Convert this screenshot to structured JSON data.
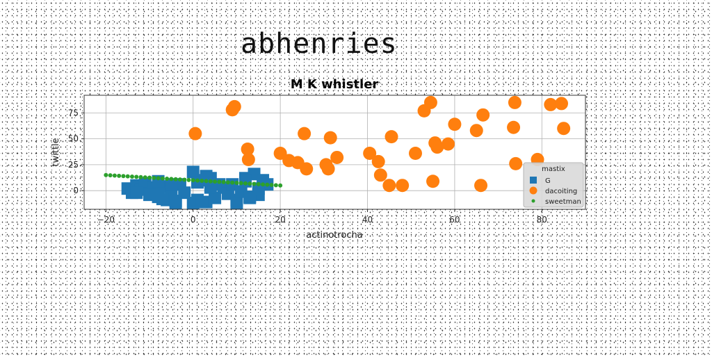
{
  "page_title": "abhenries",
  "chart_data": {
    "type": "scatter",
    "title": "M K whistler",
    "xlabel": "actinotrocha",
    "ylabel": "twittle",
    "xlim": [
      -25,
      90
    ],
    "ylim": [
      -18,
      92
    ],
    "xticks": [
      -20,
      0,
      20,
      40,
      60,
      80
    ],
    "yticks": [
      0,
      25,
      50,
      75
    ],
    "grid": true,
    "legend": {
      "title": "mastix",
      "position": "lower-right"
    },
    "series": [
      {
        "name": "G",
        "marker": "square",
        "color": "#1f77b4",
        "x": [
          -15,
          -14,
          -13,
          -12,
          -11,
          -10,
          -9,
          -8,
          -7,
          -6,
          -5,
          -4,
          -3,
          -2,
          0,
          1,
          2,
          3,
          4,
          5,
          6,
          7,
          8,
          9,
          10,
          11,
          12,
          13,
          14,
          15,
          16,
          17,
          -13,
          -10,
          -7,
          -4,
          0,
          2,
          4,
          10,
          13,
          15,
          -8,
          -5,
          1,
          3,
          12
        ],
        "y": [
          2,
          -2,
          5,
          1,
          7,
          -3,
          3,
          -6,
          4,
          -9,
          1,
          -12,
          6,
          -2,
          18,
          -9,
          10,
          -11,
          12,
          -7,
          6,
          3,
          -3,
          6,
          -9,
          -1,
          12,
          -7,
          16,
          -4,
          10,
          6,
          -2,
          -4,
          -8,
          -10,
          -12,
          -11,
          3,
          -12,
          -6,
          2,
          9,
          6,
          8,
          14,
          9
        ]
      },
      {
        "name": "dacoiting",
        "marker": "circle",
        "color": "#ff7f0e",
        "x": [
          0.5,
          9,
          9.5,
          12.5,
          12.7,
          20,
          22,
          24,
          26,
          25.5,
          30.5,
          31,
          31.5,
          33,
          40.5,
          42.5,
          43,
          45,
          45.5,
          48,
          51,
          53,
          54.5,
          55,
          55.5,
          56,
          58.5,
          60,
          65,
          66,
          66.5,
          73.5,
          73.8,
          74,
          79,
          82,
          84.5,
          85
        ],
        "y": [
          55,
          78,
          81,
          40,
          30,
          36,
          29,
          27,
          21,
          55,
          25,
          21,
          51,
          32,
          36,
          28,
          15,
          5,
          52,
          5,
          36,
          77,
          85,
          9,
          46,
          42,
          45,
          64,
          58,
          5,
          73,
          61,
          85,
          26,
          30,
          83,
          84,
          60
        ]
      },
      {
        "name": "sweetman",
        "marker": "point",
        "color": "#2ca02c",
        "x": [
          -20,
          -19,
          -18,
          -17,
          -16,
          -15,
          -14,
          -13,
          -12,
          -11,
          -10,
          -9,
          -8,
          -7,
          -6,
          -5,
          -4,
          -3,
          -2,
          -1,
          0,
          1,
          2,
          3,
          4,
          5,
          6,
          7,
          8,
          9,
          10,
          11,
          12,
          13,
          14,
          15,
          16,
          17,
          18,
          19,
          20
        ],
        "y": [
          15,
          14.75,
          14.5,
          14.25,
          14,
          13.75,
          13.5,
          13.25,
          13,
          12.75,
          12.5,
          12.25,
          12,
          11.75,
          11.5,
          11.25,
          11,
          10.75,
          10.5,
          10.25,
          10,
          9.75,
          9.5,
          9.25,
          9,
          8.75,
          8.5,
          8.25,
          8,
          7.75,
          7.5,
          7.25,
          7,
          6.75,
          6.5,
          6.25,
          6,
          5.75,
          5.5,
          5.25,
          5
        ]
      }
    ]
  }
}
